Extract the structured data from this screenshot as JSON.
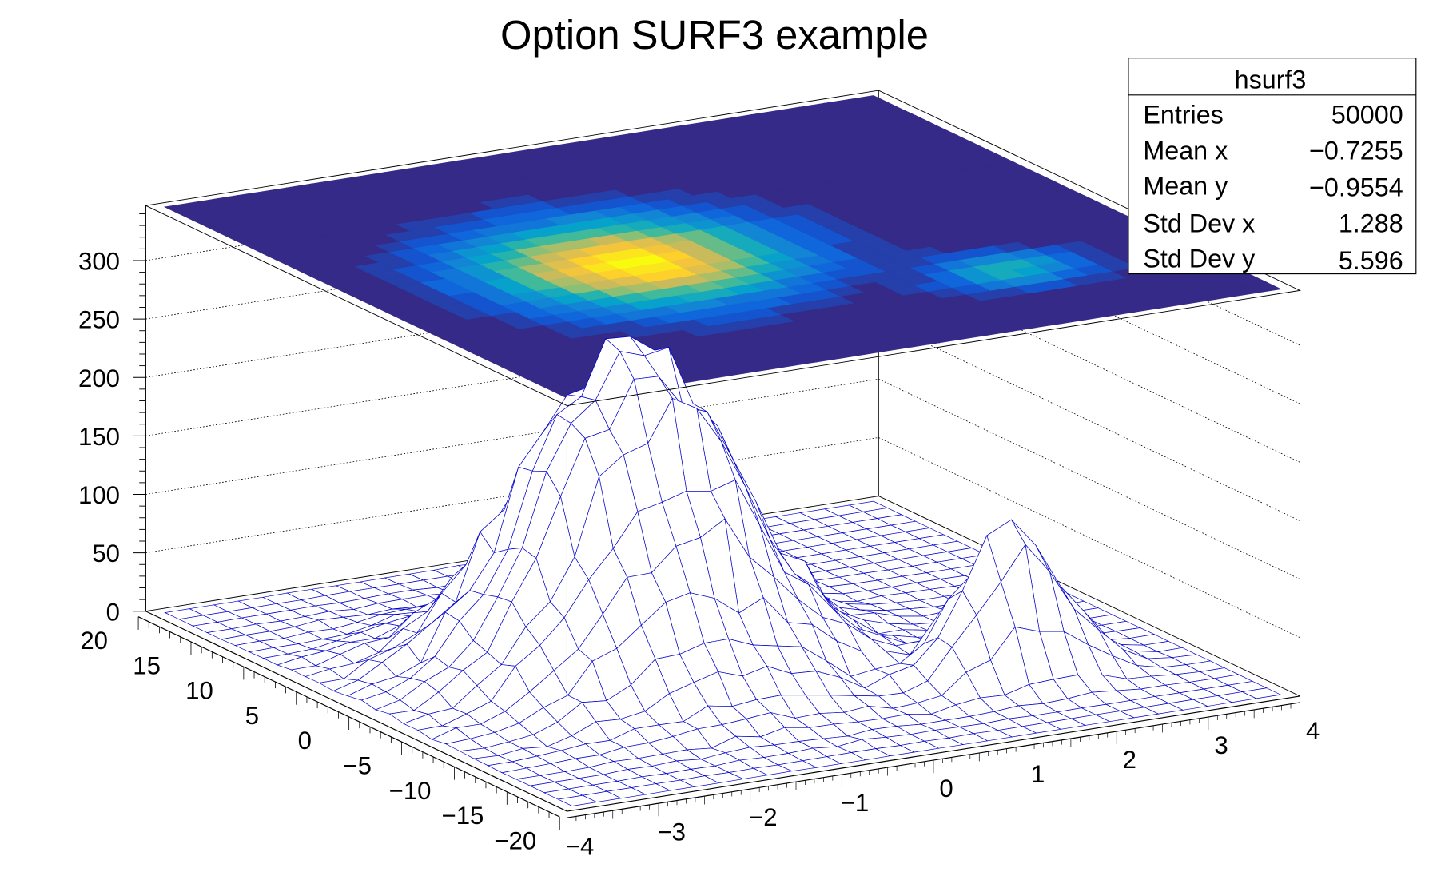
{
  "chart_data": {
    "type": "surface",
    "draw_option": "SURF3",
    "title": "Option SURF3 example",
    "x_range": [
      -4,
      4
    ],
    "y_range": [
      -20,
      20
    ],
    "z_range": [
      0,
      347
    ],
    "bins_x": 30,
    "bins_y": 30,
    "x_ticks": [
      "−4",
      "−3",
      "−2",
      "−1",
      "0",
      "1",
      "2",
      "3",
      "4"
    ],
    "x_tick_values": [
      -4,
      -3,
      -2,
      -1,
      0,
      1,
      2,
      3,
      4
    ],
    "y_ticks": [
      "−20",
      "−15",
      "−10",
      "−5",
      "0",
      "5",
      "10",
      "15",
      "20"
    ],
    "y_tick_values": [
      -20,
      -15,
      -10,
      -5,
      0,
      5,
      10,
      15,
      20
    ],
    "z_ticks": [
      "0",
      "50",
      "100",
      "150",
      "200",
      "250",
      "300"
    ],
    "z_tick_values": [
      0,
      50,
      100,
      150,
      200,
      250,
      300
    ],
    "peaks": [
      {
        "x_mean": -1,
        "y_mean": 0,
        "x_sigma": 1,
        "y_sigma": 5,
        "height": 280
      },
      {
        "x_mean": 2,
        "y_mean": -10,
        "x_sigma": 0.5,
        "y_sigma": 2,
        "height": 135
      }
    ],
    "grid": "back walls dotted",
    "contour_levels": 20,
    "palette": [
      "#352a87",
      "#0f5cdd",
      "#1481d6",
      "#06a4ca",
      "#2eb7a4",
      "#87bf77",
      "#d1bb59",
      "#fec832",
      "#f9fb0e"
    ],
    "mesh_color": "#0000cc",
    "legend": "top-right"
  },
  "stats": {
    "name": "hsurf3",
    "rows": [
      {
        "label": "Entries",
        "value": "50000"
      },
      {
        "label": "Mean x",
        "value": "−0.7255"
      },
      {
        "label": "Mean y",
        "value": "−0.9554"
      },
      {
        "label": "Std Dev x",
        "value": "1.288"
      },
      {
        "label": "Std Dev y",
        "value": "5.596"
      }
    ]
  }
}
